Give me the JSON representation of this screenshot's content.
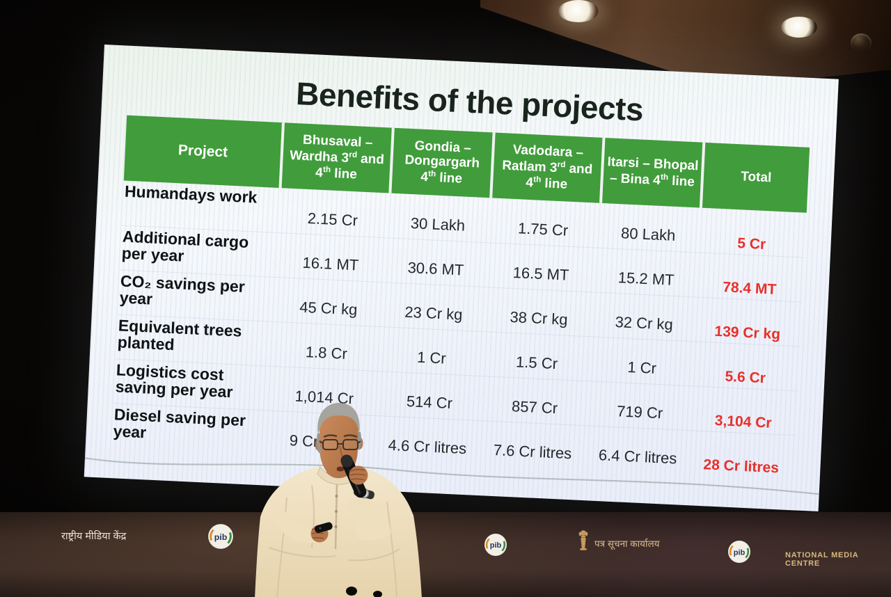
{
  "slide": {
    "title": "Benefits of the projects",
    "table": {
      "columns": [
        "Project",
        "Bhusaval – Wardha 3rd and 4th line",
        "Gondia – Dongargarh 4th line",
        "Vadodara – Ratlam 3rd and 4th line",
        "Itarsi – Bhopal – Bina 4th line",
        "Total"
      ],
      "rows": [
        {
          "label": "Humandays work",
          "values": [
            "2.15 Cr",
            "30 Lakh",
            "1.75 Cr",
            "80 Lakh"
          ],
          "total": "5 Cr"
        },
        {
          "label": "Additional cargo per year",
          "values": [
            "16.1 MT",
            "30.6 MT",
            "16.5 MT",
            "15.2 MT"
          ],
          "total": "78.4 MT"
        },
        {
          "label": "CO₂ savings per year",
          "values": [
            "45 Cr kg",
            "23 Cr kg",
            "38 Cr kg",
            "32 Cr kg"
          ],
          "total": "139 Cr kg"
        },
        {
          "label": "Equivalent trees planted",
          "values": [
            "1.8 Cr",
            "1 Cr",
            "1.5 Cr",
            "1 Cr"
          ],
          "total": "5.6 Cr"
        },
        {
          "label": "Logistics cost saving per year",
          "values": [
            "1,014 Cr",
            "514 Cr",
            "857 Cr",
            "719 Cr"
          ],
          "total": "3,104 Cr"
        },
        {
          "label": "Diesel saving per year",
          "values": [
            "9 Cr litres",
            "4.6 Cr litres",
            "7.6 Cr litres",
            "6.4 Cr litres"
          ],
          "total": "28 Cr litres"
        }
      ]
    }
  },
  "backdrop": {
    "nmc_hindi": "राष्ट्रीय मीडिया केंद्र",
    "pib_hindi": "पत्र सूचना कार्यालय",
    "nmc_english": "NATIONAL MEDIA CENTRE",
    "pib_logo_text": "pib"
  },
  "colors": {
    "header_green": "#419c3c",
    "total_red": "#e8302a",
    "title_dark": "#18241c",
    "wall_brown": "#3a2b24",
    "gold_text": "#d8b87e"
  }
}
